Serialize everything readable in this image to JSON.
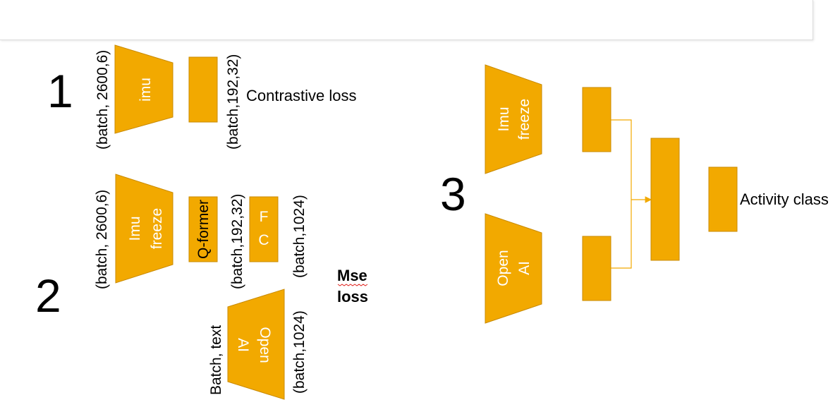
{
  "colors": {
    "block_fill": "#f2a900",
    "block_stroke": "#c98a00",
    "connector": "#f2a900",
    "text": "#000000",
    "block_text": "#ffffff"
  },
  "section1": {
    "number": "1",
    "input_shape": "(batch, 2600,6)",
    "encoder_label": "imu",
    "output_shape": "(batch,192,32)",
    "loss_label": "Contrastive loss"
  },
  "section2": {
    "number": "2",
    "input_shape": "(batch, 2600,6)",
    "encoder_line1": "Imu",
    "encoder_line2": "freeze",
    "qformer_label": "Q-former",
    "qformer_shape": "(batch,192,32)",
    "fc_line1": "F",
    "fc_line2": "C",
    "fc_shape": "(batch,1024)",
    "text_input_label": "Batch, text",
    "openai_line1": "Open",
    "openai_line2": "AI",
    "openai_shape": "(batch,1024)",
    "loss_line1": "Mse",
    "loss_line2": "loss"
  },
  "section3": {
    "number": "3",
    "imu_line1": "Imu",
    "imu_line2": "freeze",
    "openai_line1": "Open",
    "openai_line2": "AI",
    "output_label": "Activity class"
  }
}
